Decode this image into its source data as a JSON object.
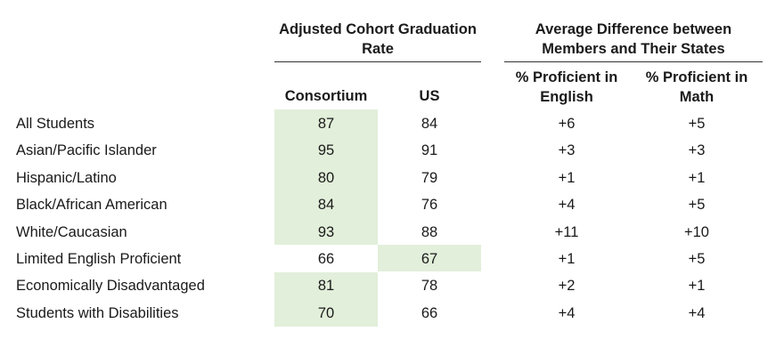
{
  "header": {
    "cohort_group": "Adjusted Cohort Graduation Rate",
    "difference_group": "Average Difference between Members and Their States",
    "columns": {
      "consortium": "Consortium",
      "us": "US",
      "english": "% Proficient in English",
      "math": "% Proficient in Math"
    }
  },
  "highlight_color": "#e2efda",
  "highlighted_cells": [
    "All Students: Consortium",
    "Asian/Pacific Islander: Consortium",
    "Hispanic/Latino: Consortium",
    "Black/African American: Consortium",
    "White/Caucasian: Consortium",
    "Limited English Proficient: US",
    "Economically Disadvantaged: Consortium",
    "Students with Disabilities: Consortium"
  ],
  "rows": [
    {
      "label": "All Students",
      "consortium": "87",
      "us": "84",
      "english": "+6",
      "math": "+5"
    },
    {
      "label": "Asian/Pacific Islander",
      "consortium": "95",
      "us": "91",
      "english": "+3",
      "math": "+3"
    },
    {
      "label": "Hispanic/Latino",
      "consortium": "80",
      "us": "79",
      "english": "+1",
      "math": "+1"
    },
    {
      "label": "Black/African American",
      "consortium": "84",
      "us": "76",
      "english": "+4",
      "math": "+5"
    },
    {
      "label": "White/Caucasian",
      "consortium": "93",
      "us": "88",
      "english": "+11",
      "math": "+10"
    },
    {
      "label": "Limited English Proficient",
      "consortium": "66",
      "us": "67",
      "english": "+1",
      "math": "+5"
    },
    {
      "label": "Economically Disadvantaged",
      "consortium": "81",
      "us": "78",
      "english": "+2",
      "math": "+1"
    },
    {
      "label": "Students with Disabilities",
      "consortium": "70",
      "us": "66",
      "english": "+4",
      "math": "+4"
    }
  ]
}
